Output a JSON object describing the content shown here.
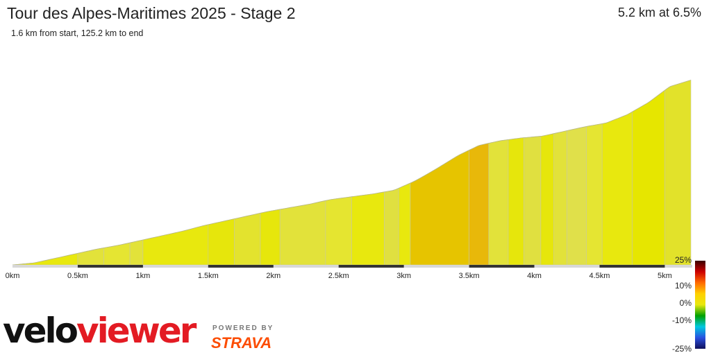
{
  "header": {
    "title": "Tour des Alpes-Maritimes 2025 - Stage 2",
    "subtitle": "1.6 km from start, 125.2 km to end",
    "summary": "5.2 km at 6.5%"
  },
  "branding": {
    "logo_part1": "velo",
    "logo_part2": "viewer",
    "powered_by": "POWERED BY",
    "strava": "STRAVA",
    "logo_color": "#e31b23",
    "strava_color": "#fc4c02"
  },
  "chart_data": {
    "type": "area",
    "x_unit": "km",
    "x_ticks": [
      "0km",
      "0.5km",
      "1km",
      "1.5km",
      "2km",
      "2.5km",
      "3km",
      "3.5km",
      "4km",
      "4.5km",
      "5km"
    ],
    "xlim": [
      0,
      5.2
    ],
    "profile_gain_m": [
      0,
      2,
      7,
      12,
      17,
      21,
      26,
      31,
      36,
      42,
      47,
      52,
      57,
      61,
      65,
      70,
      73,
      76,
      80,
      90,
      103,
      117,
      128,
      133,
      136,
      138,
      143,
      148,
      152,
      161,
      174,
      191,
      198
    ],
    "segments": [
      {
        "from": 0.0,
        "to": 0.1,
        "gradient": 2.0,
        "color": "#e2e22a"
      },
      {
        "from": 0.1,
        "to": 0.5,
        "gradient": 5.0,
        "color": "#e8e80e"
      },
      {
        "from": 0.5,
        "to": 0.7,
        "gradient": 5.0,
        "color": "#e2e23a"
      },
      {
        "from": 0.7,
        "to": 0.9,
        "gradient": 4.6,
        "color": "#e5e532"
      },
      {
        "from": 0.9,
        "to": 1.0,
        "gradient": 4.2,
        "color": "#e2e23a"
      },
      {
        "from": 1.0,
        "to": 1.5,
        "gradient": 5.2,
        "color": "#e8e80e"
      },
      {
        "from": 1.5,
        "to": 1.7,
        "gradient": 5.0,
        "color": "#e6e60c"
      },
      {
        "from": 1.7,
        "to": 1.9,
        "gradient": 5.1,
        "color": "#e3e32e"
      },
      {
        "from": 1.9,
        "to": 2.05,
        "gradient": 5.6,
        "color": "#e6e60c"
      },
      {
        "from": 2.05,
        "to": 2.4,
        "gradient": 4.2,
        "color": "#e2e23a"
      },
      {
        "from": 2.4,
        "to": 2.6,
        "gradient": 5.2,
        "color": "#e5e530"
      },
      {
        "from": 2.6,
        "to": 2.85,
        "gradient": 6.0,
        "color": "#e8e80e"
      },
      {
        "from": 2.85,
        "to": 2.96,
        "gradient": 3.8,
        "color": "#e0e040"
      },
      {
        "from": 2.96,
        "to": 3.05,
        "gradient": 4.0,
        "color": "#e8e80e"
      },
      {
        "from": 3.05,
        "to": 3.5,
        "gradient": 12.6,
        "color": "#e6c400"
      },
      {
        "from": 3.5,
        "to": 3.65,
        "gradient": 11.5,
        "color": "#e8b80a"
      },
      {
        "from": 3.65,
        "to": 3.8,
        "gradient": 4.7,
        "color": "#e2e23a"
      },
      {
        "from": 3.8,
        "to": 3.92,
        "gradient": 5.6,
        "color": "#e6e60c"
      },
      {
        "from": 3.92,
        "to": 4.05,
        "gradient": 3.6,
        "color": "#e0e040"
      },
      {
        "from": 4.05,
        "to": 4.15,
        "gradient": 4.2,
        "color": "#e6e60c"
      },
      {
        "from": 4.15,
        "to": 4.25,
        "gradient": 3.5,
        "color": "#e2e23a"
      },
      {
        "from": 4.25,
        "to": 4.4,
        "gradient": 3.8,
        "color": "#e0e04a"
      },
      {
        "from": 4.4,
        "to": 4.52,
        "gradient": 4.2,
        "color": "#e5e532"
      },
      {
        "from": 4.52,
        "to": 4.75,
        "gradient": 5.8,
        "color": "#e8e80e"
      },
      {
        "from": 4.75,
        "to": 5.0,
        "gradient": 6.8,
        "color": "#e6e600"
      },
      {
        "from": 5.0,
        "to": 5.2,
        "gradient": 5.0,
        "color": "#e2e22a"
      }
    ],
    "colorbar": {
      "labels": [
        "25%",
        "10%",
        "0%",
        "-10%",
        "-25%"
      ],
      "values": [
        25,
        10,
        0,
        -10,
        -25
      ],
      "stops": [
        "#3a0000",
        "#cc0000",
        "#ff6a00",
        "#ffd000",
        "#e8e80e",
        "#00a000",
        "#00c8e0",
        "#2a50e0",
        "#10105a"
      ]
    }
  }
}
